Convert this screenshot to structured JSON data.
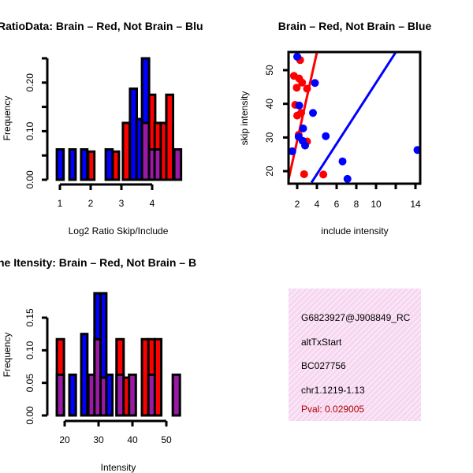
{
  "colors": {
    "red": "#ff0000",
    "blue": "#0000ff",
    "purple": "#9a1aa6",
    "pval": "#b00000"
  },
  "chart_data": [
    {
      "type": "bar",
      "title": "RatioData: Brain – Red, Not Brain – Blu",
      "xlabel": "Log2 Ratio Skip/Include",
      "ylabel": "Frequency",
      "xticks": [
        "1",
        "2",
        "3",
        "4"
      ],
      "xtick_values": [
        1,
        2,
        3,
        4
      ],
      "yticks": [
        "0.00",
        "0.10",
        "0.20"
      ],
      "ytick_values": [
        0,
        0.1,
        0.2
      ],
      "yminor": [
        0.05,
        0.15,
        0.25
      ],
      "xlim": [
        0.6,
        4.95
      ],
      "ylim": [
        0,
        0.25
      ],
      "bars": [
        {
          "x": 0.9,
          "w": 0.22,
          "v": 0.0625,
          "c": "blue"
        },
        {
          "x": 1.31,
          "w": 0.2,
          "v": 0.0625,
          "c": "blue"
        },
        {
          "x": 1.69,
          "w": 0.2,
          "v": 0.0625,
          "c": "blue"
        },
        {
          "x": 1.92,
          "w": 0.2,
          "v": 0.058,
          "c": "red"
        },
        {
          "x": 2.49,
          "w": 0.22,
          "v": 0.0625,
          "c": "blue"
        },
        {
          "x": 2.72,
          "w": 0.2,
          "v": 0.058,
          "c": "red"
        },
        {
          "x": 3.05,
          "w": 0.22,
          "v": 0.117,
          "c": "red"
        },
        {
          "x": 3.28,
          "w": 0.22,
          "v": 0.1875,
          "c": "blue"
        },
        {
          "x": 3.49,
          "w": 0.2,
          "v": 0.125,
          "c": "blue"
        },
        {
          "x": 3.67,
          "w": 0.23,
          "v": 0.25,
          "c": "blue"
        },
        {
          "x": 3.67,
          "w": 0.23,
          "v": 0.117,
          "c": "purple"
        },
        {
          "x": 3.9,
          "w": 0.2,
          "v": 0.175,
          "c": "red"
        },
        {
          "x": 3.9,
          "w": 0.2,
          "v": 0.0625,
          "c": "purple"
        },
        {
          "x": 4.08,
          "w": 0.2,
          "v": 0.117,
          "c": "red"
        },
        {
          "x": 4.08,
          "w": 0.2,
          "v": 0.0625,
          "c": "purple"
        },
        {
          "x": 4.28,
          "w": 0.2,
          "v": 0.117,
          "c": "red"
        },
        {
          "x": 4.46,
          "w": 0.22,
          "v": 0.175,
          "c": "red"
        },
        {
          "x": 4.72,
          "w": 0.22,
          "v": 0.0625,
          "c": "purple"
        }
      ]
    },
    {
      "type": "scatter",
      "title": "Brain – Red, Not Brain – Blue",
      "xlabel": "include intensity",
      "ylabel": "skip intensity",
      "xticks": [
        "2",
        "4",
        "6",
        "8",
        "10",
        "14"
      ],
      "xtick_values": [
        2,
        4,
        6,
        8,
        10,
        14
      ],
      "xminor": [
        12
      ],
      "yticks": [
        "20",
        "30",
        "40",
        "50"
      ],
      "ytick_values": [
        20,
        30,
        40,
        50
      ],
      "xlim": [
        1.05,
        14.5
      ],
      "ylim": [
        16.6,
        55.3
      ],
      "series": [
        {
          "name": "Brain",
          "color": "red",
          "points": [
            [
              2.3,
              53
            ],
            [
              1.67,
              48.3
            ],
            [
              2.2,
              47.5
            ],
            [
              2.5,
              46.3
            ],
            [
              1.95,
              44.8
            ],
            [
              3.0,
              44.5
            ],
            [
              1.8,
              39.7
            ],
            [
              2.0,
              36.5
            ],
            [
              2.4,
              37.3
            ],
            [
              3.0,
              28.8
            ],
            [
              2.7,
              19.1
            ],
            [
              4.65,
              19
            ],
            [
              2.15,
              30.8
            ]
          ],
          "fit": [
            [
              1.05,
              16.6
            ],
            [
              4.0,
              55.3
            ]
          ]
        },
        {
          "name": "Not Brain",
          "color": "blue",
          "points": [
            [
              2.0,
              54
            ],
            [
              3.8,
              46.2
            ],
            [
              2.2,
              39.5
            ],
            [
              3.6,
              37.3
            ],
            [
              2.6,
              32.7
            ],
            [
              2.15,
              30.2
            ],
            [
              2.55,
              29
            ],
            [
              2.8,
              27.6
            ],
            [
              4.9,
              30.4
            ],
            [
              1.5,
              25.9
            ],
            [
              6.6,
              22.9
            ],
            [
              7.1,
              17.7
            ],
            [
              14.2,
              26.3
            ]
          ],
          "fit": [
            [
              3.45,
              16.6
            ],
            [
              12.0,
              55.3
            ]
          ]
        }
      ]
    },
    {
      "type": "bar",
      "title": "ne Itensity: Brain – Red, Not Brain – B",
      "xlabel": "Intensity",
      "ylabel": "Frequency",
      "xticks": [
        "20",
        "30",
        "40",
        "50"
      ],
      "xtick_values": [
        20,
        30,
        40,
        50
      ],
      "yticks": [
        "0.00",
        "0.05",
        "0.10",
        "0.15"
      ],
      "ytick_values": [
        0,
        0.05,
        0.1,
        0.15
      ],
      "yminor": [],
      "xlim": [
        14.5,
        55
      ],
      "ylim": [
        0,
        0.1875
      ],
      "bars": [
        {
          "x": 17.7,
          "w": 2.1,
          "v": 0.117,
          "c": "red"
        },
        {
          "x": 17.7,
          "w": 2.1,
          "v": 0.0625,
          "c": "purple"
        },
        {
          "x": 21.4,
          "w": 1.9,
          "v": 0.0625,
          "c": "blue"
        },
        {
          "x": 24.9,
          "w": 1.8,
          "v": 0.125,
          "c": "blue"
        },
        {
          "x": 27.0,
          "w": 1.9,
          "v": 0.0625,
          "c": "purple"
        },
        {
          "x": 28.8,
          "w": 1.8,
          "v": 0.1875,
          "c": "blue"
        },
        {
          "x": 28.8,
          "w": 1.8,
          "v": 0.117,
          "c": "purple"
        },
        {
          "x": 30.6,
          "w": 1.7,
          "v": 0.1875,
          "c": "blue"
        },
        {
          "x": 30.6,
          "w": 1.7,
          "v": 0.058,
          "c": "purple"
        },
        {
          "x": 32.3,
          "w": 1.8,
          "v": 0.0625,
          "c": "blue"
        },
        {
          "x": 35.3,
          "w": 2.1,
          "v": 0.117,
          "c": "red"
        },
        {
          "x": 35.3,
          "w": 2.1,
          "v": 0.0625,
          "c": "purple"
        },
        {
          "x": 37.4,
          "w": 1.7,
          "v": 0.058,
          "c": "red"
        },
        {
          "x": 39.0,
          "w": 2.0,
          "v": 0.0625,
          "c": "purple"
        },
        {
          "x": 42.8,
          "w": 1.9,
          "v": 0.117,
          "c": "red"
        },
        {
          "x": 44.7,
          "w": 1.9,
          "v": 0.117,
          "c": "red"
        },
        {
          "x": 44.7,
          "w": 1.9,
          "v": 0.0625,
          "c": "purple"
        },
        {
          "x": 46.6,
          "w": 1.9,
          "v": 0.117,
          "c": "red"
        },
        {
          "x": 51.9,
          "w": 2.1,
          "v": 0.0625,
          "c": "purple"
        }
      ]
    }
  ],
  "info": {
    "id": "G6823927@J908849_RC",
    "event": "altTxStart",
    "accession": "BC027756",
    "location": "chr1.1219-1.13",
    "pval": "Pval: 0.029005"
  }
}
